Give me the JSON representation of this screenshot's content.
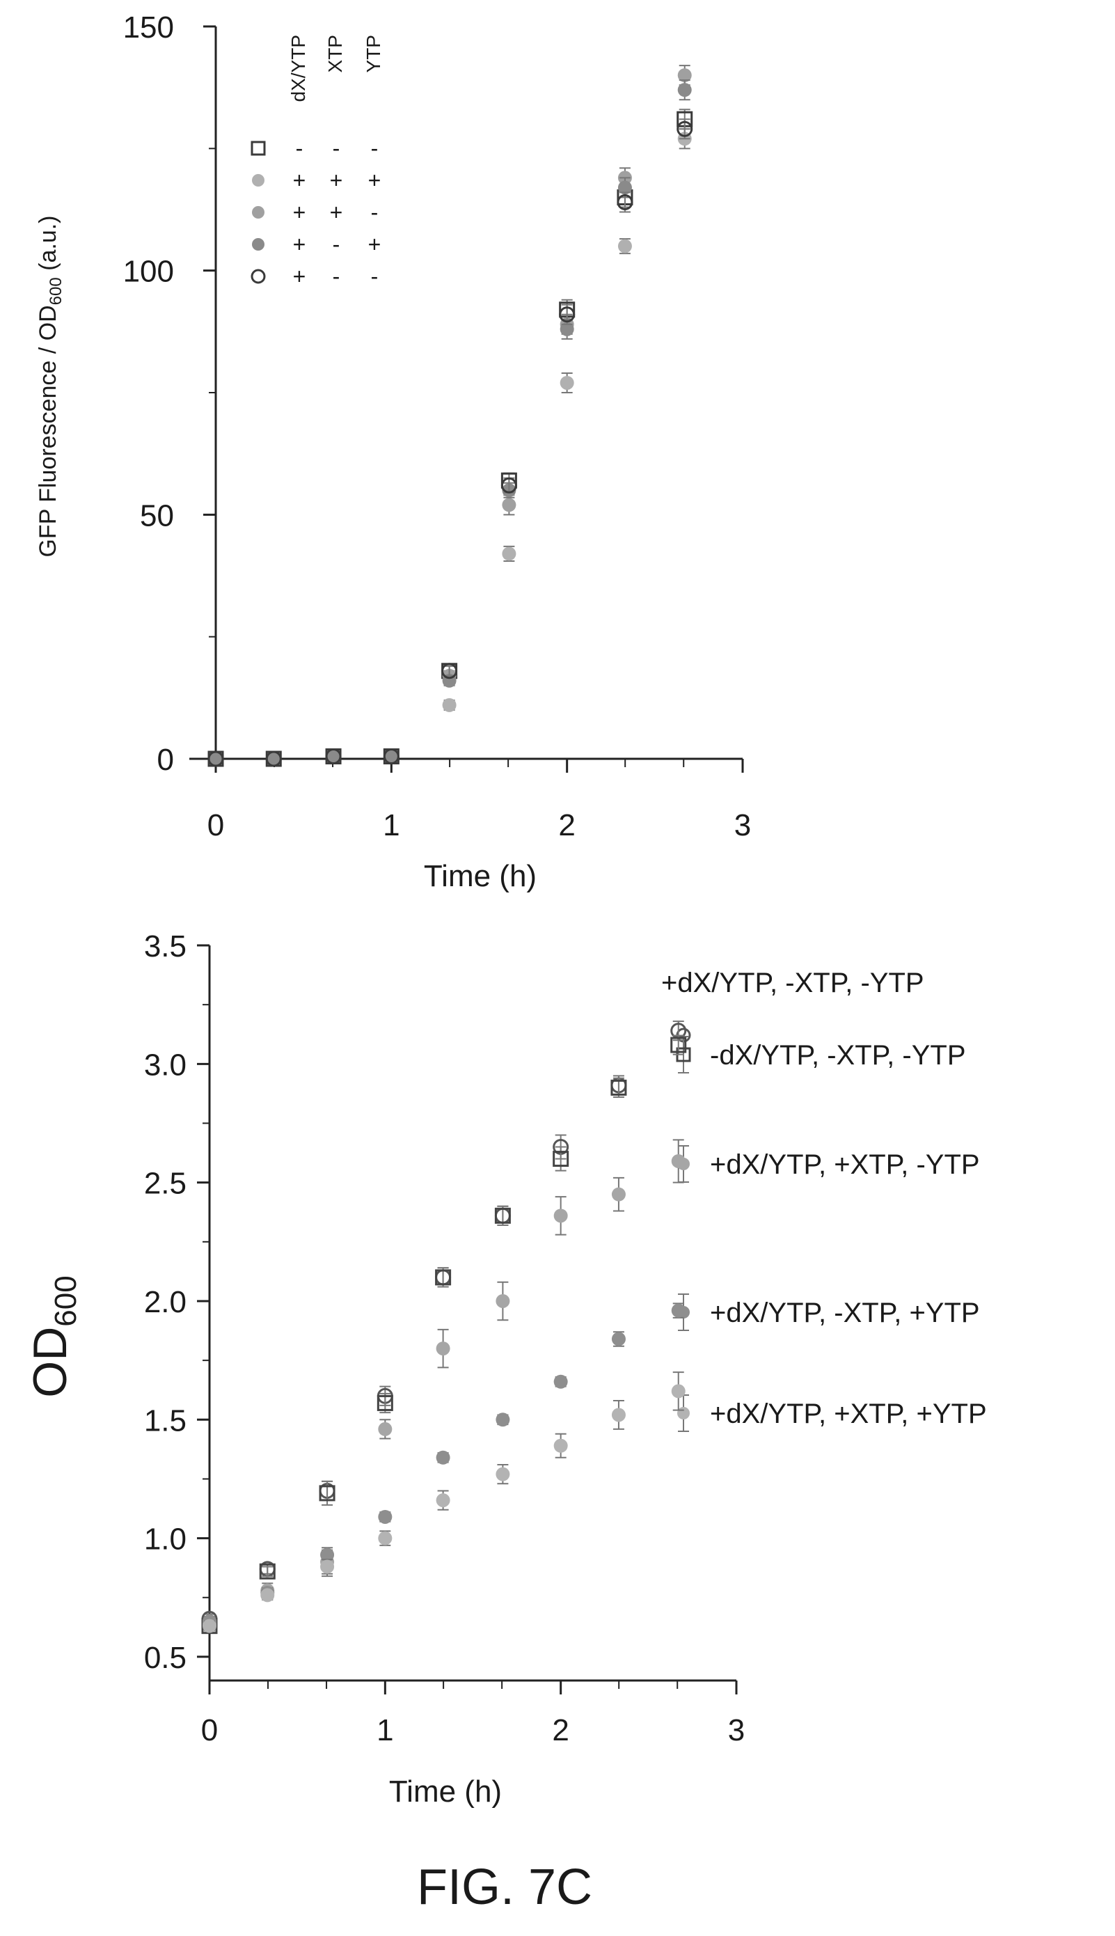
{
  "figure_caption": "FIG. 7C",
  "chart_data": [
    {
      "type": "scatter",
      "xlabel": "Time (h)",
      "ylabel_main": "GFP Fluorescence / OD",
      "ylabel_sub": "600",
      "ylabel_suffix": " (a.u.)",
      "xlim": [
        0,
        3
      ],
      "ylim": [
        0,
        150
      ],
      "xticks": [
        "0",
        "1",
        "2",
        "3"
      ],
      "yticks": [
        "0",
        "50",
        "100",
        "150"
      ],
      "legend_headers": [
        "dX/YTP",
        "XTP",
        "YTP"
      ],
      "legend_rows": [
        {
          "marker": "open-square",
          "color": "#3a3a3a",
          "signs": [
            "-",
            "-",
            "-"
          ]
        },
        {
          "marker": "filled-circle",
          "color": "#b0b0b0",
          "signs": [
            "+",
            "+",
            "+"
          ]
        },
        {
          "marker": "filled-circle",
          "color": "#a0a0a0",
          "signs": [
            "+",
            "+",
            "-"
          ]
        },
        {
          "marker": "filled-circle",
          "color": "#8a8a8a",
          "signs": [
            "+",
            "-",
            "+"
          ]
        },
        {
          "marker": "open-circle",
          "color": "#3a3a3a",
          "signs": [
            "+",
            "-",
            "-"
          ]
        }
      ],
      "x": [
        0,
        0.33,
        0.67,
        1.0,
        1.33,
        1.67,
        2.0,
        2.33,
        2.67
      ],
      "series": [
        {
          "marker": "open-square",
          "color": "#3a3a3a",
          "values": [
            0,
            0,
            0.5,
            0.5,
            18,
            57,
            92,
            115,
            131
          ],
          "err": [
            0,
            0,
            0,
            0,
            1,
            1.5,
            2,
            2,
            2
          ]
        },
        {
          "marker": "filled-circle",
          "color": "#b0b0b0",
          "values": [
            0,
            0,
            0.5,
            0.5,
            11,
            42,
            77,
            105,
            127
          ],
          "err": [
            0,
            0,
            0,
            0,
            1,
            1.5,
            2,
            1.5,
            2
          ]
        },
        {
          "marker": "filled-circle",
          "color": "#a0a0a0",
          "values": [
            0,
            0,
            0.5,
            0.5,
            17,
            52,
            89,
            119,
            140
          ],
          "err": [
            0,
            0,
            0,
            0,
            1,
            2,
            2,
            2,
            2
          ]
        },
        {
          "marker": "filled-circle",
          "color": "#8a8a8a",
          "values": [
            0,
            0,
            0.5,
            0.5,
            16,
            55,
            88,
            117,
            137
          ],
          "err": [
            0,
            0,
            0,
            0,
            1,
            1.5,
            2,
            2,
            2
          ]
        },
        {
          "marker": "open-circle",
          "color": "#3a3a3a",
          "values": [
            0,
            0,
            0.5,
            0.5,
            18,
            56,
            91,
            114,
            129
          ],
          "err": [
            0,
            0,
            0,
            0,
            1,
            1.5,
            2,
            2,
            2
          ]
        }
      ]
    },
    {
      "type": "scatter",
      "xlabel": "Time (h)",
      "ylabel_main": "OD",
      "ylabel_sub": "600",
      "xlim": [
        0,
        3
      ],
      "ylim": [
        0.4,
        3.5
      ],
      "xticks": [
        "0",
        "1",
        "2",
        "3"
      ],
      "yticks": [
        "0.5",
        "1.0",
        "1.5",
        "2.0",
        "2.5",
        "3.0",
        "3.5"
      ],
      "legend": [
        "+dX/YTP, -XTP, -YTP",
        "-dX/YTP, -XTP, -YTP",
        "+dX/YTP, +XTP, -YTP",
        "+dX/YTP, -XTP, +YTP",
        "+dX/YTP, +XTP, +YTP"
      ],
      "x": [
        0,
        0.33,
        0.67,
        1.0,
        1.33,
        1.67,
        2.0,
        2.33,
        2.67
      ],
      "series": [
        {
          "name": "+dX/YTP, -XTP, -YTP",
          "marker": "open-circle",
          "color": "#555555",
          "values": [
            0.66,
            0.87,
            1.2,
            1.6,
            2.1,
            2.36,
            2.65,
            2.91,
            3.14
          ],
          "err": [
            0.02,
            0.02,
            0.04,
            0.04,
            0.04,
            0.04,
            0.05,
            0.04,
            0.04
          ]
        },
        {
          "name": "-dX/YTP, -XTP, -YTP",
          "marker": "open-square",
          "color": "#444444",
          "values": [
            0.63,
            0.86,
            1.19,
            1.57,
            2.1,
            2.36,
            2.6,
            2.9,
            3.08
          ],
          "err": [
            0.02,
            0.02,
            0.05,
            0.04,
            0.04,
            0.04,
            0.05,
            0.04,
            0.04
          ]
        },
        {
          "name": "+dX/YTP, +XTP, -YTP",
          "marker": "filled-circle",
          "color": "#a6a6a6",
          "values": [
            0.64,
            0.78,
            0.9,
            1.46,
            1.8,
            2.0,
            2.36,
            2.45,
            2.59
          ],
          "err": [
            0.03,
            0.03,
            0.06,
            0.04,
            0.08,
            0.08,
            0.08,
            0.07,
            0.09
          ]
        },
        {
          "name": "+dX/YTP, -XTP, +YTP",
          "marker": "filled-circle",
          "color": "#8e8e8e",
          "values": [
            0.65,
            0.77,
            0.93,
            1.09,
            1.34,
            1.5,
            1.66,
            1.84,
            1.96
          ],
          "err": [
            0.02,
            0.02,
            0.02,
            0.02,
            0.02,
            0.02,
            0.02,
            0.03,
            0.03
          ]
        },
        {
          "name": "+dX/YTP, +XTP, +YTP",
          "marker": "filled-circle",
          "color": "#b3b3b3",
          "values": [
            0.63,
            0.76,
            0.88,
            1.0,
            1.16,
            1.27,
            1.39,
            1.52,
            1.62
          ],
          "err": [
            0.02,
            0.02,
            0.03,
            0.03,
            0.04,
            0.04,
            0.05,
            0.06,
            0.08
          ]
        }
      ]
    }
  ]
}
